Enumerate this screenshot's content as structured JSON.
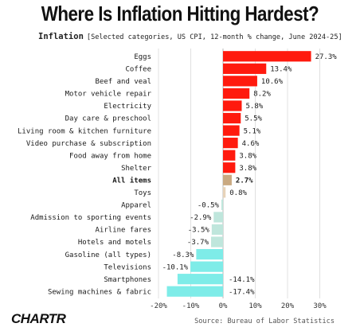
{
  "header": {
    "title": "Where Is Inflation Hitting Hardest?",
    "subtitle_lead": "Inflation",
    "subtitle_rest": "[Selected categories, US CPI, 12-month % change, June 2024-25]"
  },
  "footer": {
    "logo": "CHARTR",
    "source": "Source: Bureau of Labor Statistics"
  },
  "colors": {
    "positive_strong": "#ff1a0e",
    "positive_light": "#f08878",
    "all_items": "#c9a981",
    "toys": "#e7d3b9",
    "negative": "#bfe6dc",
    "negative_strong": "#7eece8",
    "gridline": "#e0e0e0",
    "zero_line": "#b8b8b8"
  },
  "chart_data": {
    "type": "bar",
    "orientation": "horizontal",
    "title": "Where Is Inflation Hitting Hardest?",
    "subtitle": "Inflation [Selected categories, US CPI, 12-month % change, June 2024-25]",
    "categories": [
      "Eggs",
      "Coffee",
      "Beef and veal",
      "Motor vehicle repair",
      "Electricity",
      "Day care & preschool",
      "Living room & kitchen furniture",
      "Video purchase & subscription",
      "Food away from home",
      "Shelter",
      "All items",
      "Toys",
      "Apparel",
      "Admission to sporting events",
      "Airline fares",
      "Hotels and motels",
      "Gasoline (all types)",
      "Televisions",
      "Smartphones",
      "Sewing machines & fabric"
    ],
    "values": [
      27.3,
      13.4,
      10.6,
      8.2,
      5.8,
      5.5,
      5.1,
      4.6,
      3.8,
      3.8,
      2.7,
      0.8,
      -0.5,
      -2.9,
      -3.5,
      -3.7,
      -8.3,
      -10.1,
      -14.1,
      -17.4
    ],
    "value_labels": [
      "27.3%",
      "13.4%",
      "10.6%",
      "8.2%",
      "5.8%",
      "5.5%",
      "5.1%",
      "4.6%",
      "3.8%",
      "3.8%",
      "2.7%",
      "0.8%",
      "-0.5%",
      "-2.9%",
      "-3.5%",
      "-3.7%",
      "-8.3%",
      "-10.1%",
      "-14.1%",
      "-17.4%"
    ],
    "bold_categories": [
      "All items"
    ],
    "xlim": [
      -20,
      30
    ],
    "xticks": [
      -20,
      -10,
      0,
      10,
      20,
      30
    ],
    "xtick_labels": [
      "-20%",
      "-10%",
      "0%",
      "10%",
      "20%",
      "30%"
    ],
    "grid": true
  }
}
